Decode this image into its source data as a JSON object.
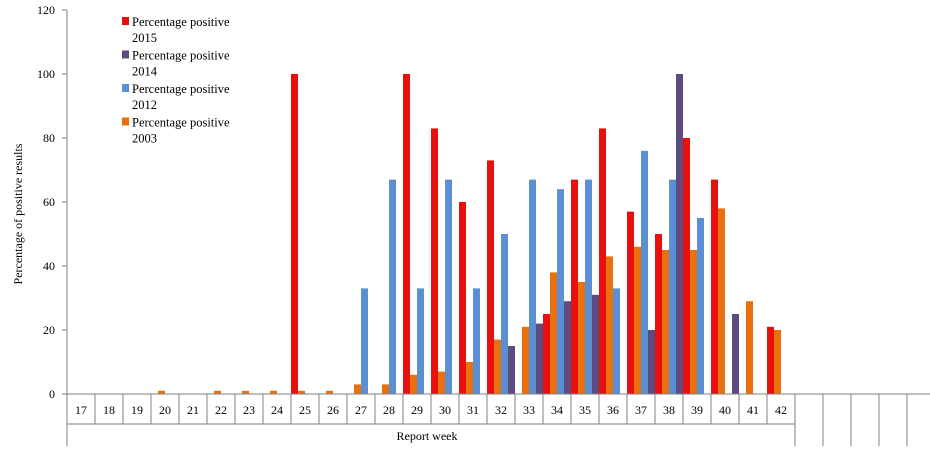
{
  "chart_data": {
    "type": "bar",
    "title": "",
    "xlabel": "Report week",
    "ylabel": "Percentage  of  positive results",
    "ylim": [
      0,
      120
    ],
    "yticks": [
      0,
      20,
      40,
      60,
      80,
      100,
      120
    ],
    "grid": false,
    "legend_position": "top-left",
    "categories": [
      "17",
      "18",
      "19",
      "20",
      "21",
      "22",
      "23",
      "24",
      "25",
      "26",
      "27",
      "28",
      "29",
      "30",
      "31",
      "32",
      "33",
      "34",
      "35",
      "36",
      "37",
      "38",
      "39",
      "40",
      "41",
      "42"
    ],
    "series": [
      {
        "name": "Percentage positive 2012",
        "legend_lines": [
          "Percentage positive",
          "2012"
        ],
        "color": "#5b8fd3",
        "values": [
          null,
          null,
          null,
          null,
          null,
          null,
          null,
          null,
          null,
          null,
          33,
          67,
          33,
          67,
          33,
          50,
          67,
          64,
          67,
          33,
          76,
          67,
          55,
          null,
          null,
          null
        ]
      },
      {
        "name": "Percentage positive 2014",
        "legend_lines": [
          "Percentage positive",
          "2014"
        ],
        "color": "#5d4a7e",
        "values": [
          null,
          null,
          null,
          null,
          null,
          null,
          null,
          null,
          null,
          null,
          null,
          null,
          null,
          null,
          null,
          15,
          22,
          29,
          31,
          null,
          20,
          100,
          null,
          25,
          null,
          null
        ]
      },
      {
        "name": "Percentage positive 2015",
        "legend_lines": [
          "Percentage positive",
          "2015"
        ],
        "color": "#e8100c",
        "values": [
          null,
          null,
          null,
          null,
          null,
          null,
          null,
          100,
          null,
          null,
          null,
          100,
          83,
          60,
          73,
          null,
          25,
          67,
          83,
          57,
          50,
          80,
          67,
          null,
          21,
          null
        ]
      },
      {
        "name": "Percentage positive 2003",
        "legend_lines": [
          "Percentage positive",
          "2003"
        ],
        "color": "#e9700f",
        "values": [
          null,
          null,
          1,
          null,
          1,
          1,
          1,
          1,
          1,
          3,
          3,
          6,
          7,
          10,
          17,
          21,
          38,
          35,
          43,
          46,
          45,
          45,
          58,
          29,
          20,
          null
        ]
      }
    ],
    "legend_order": [
      2,
      1,
      0,
      3
    ]
  }
}
